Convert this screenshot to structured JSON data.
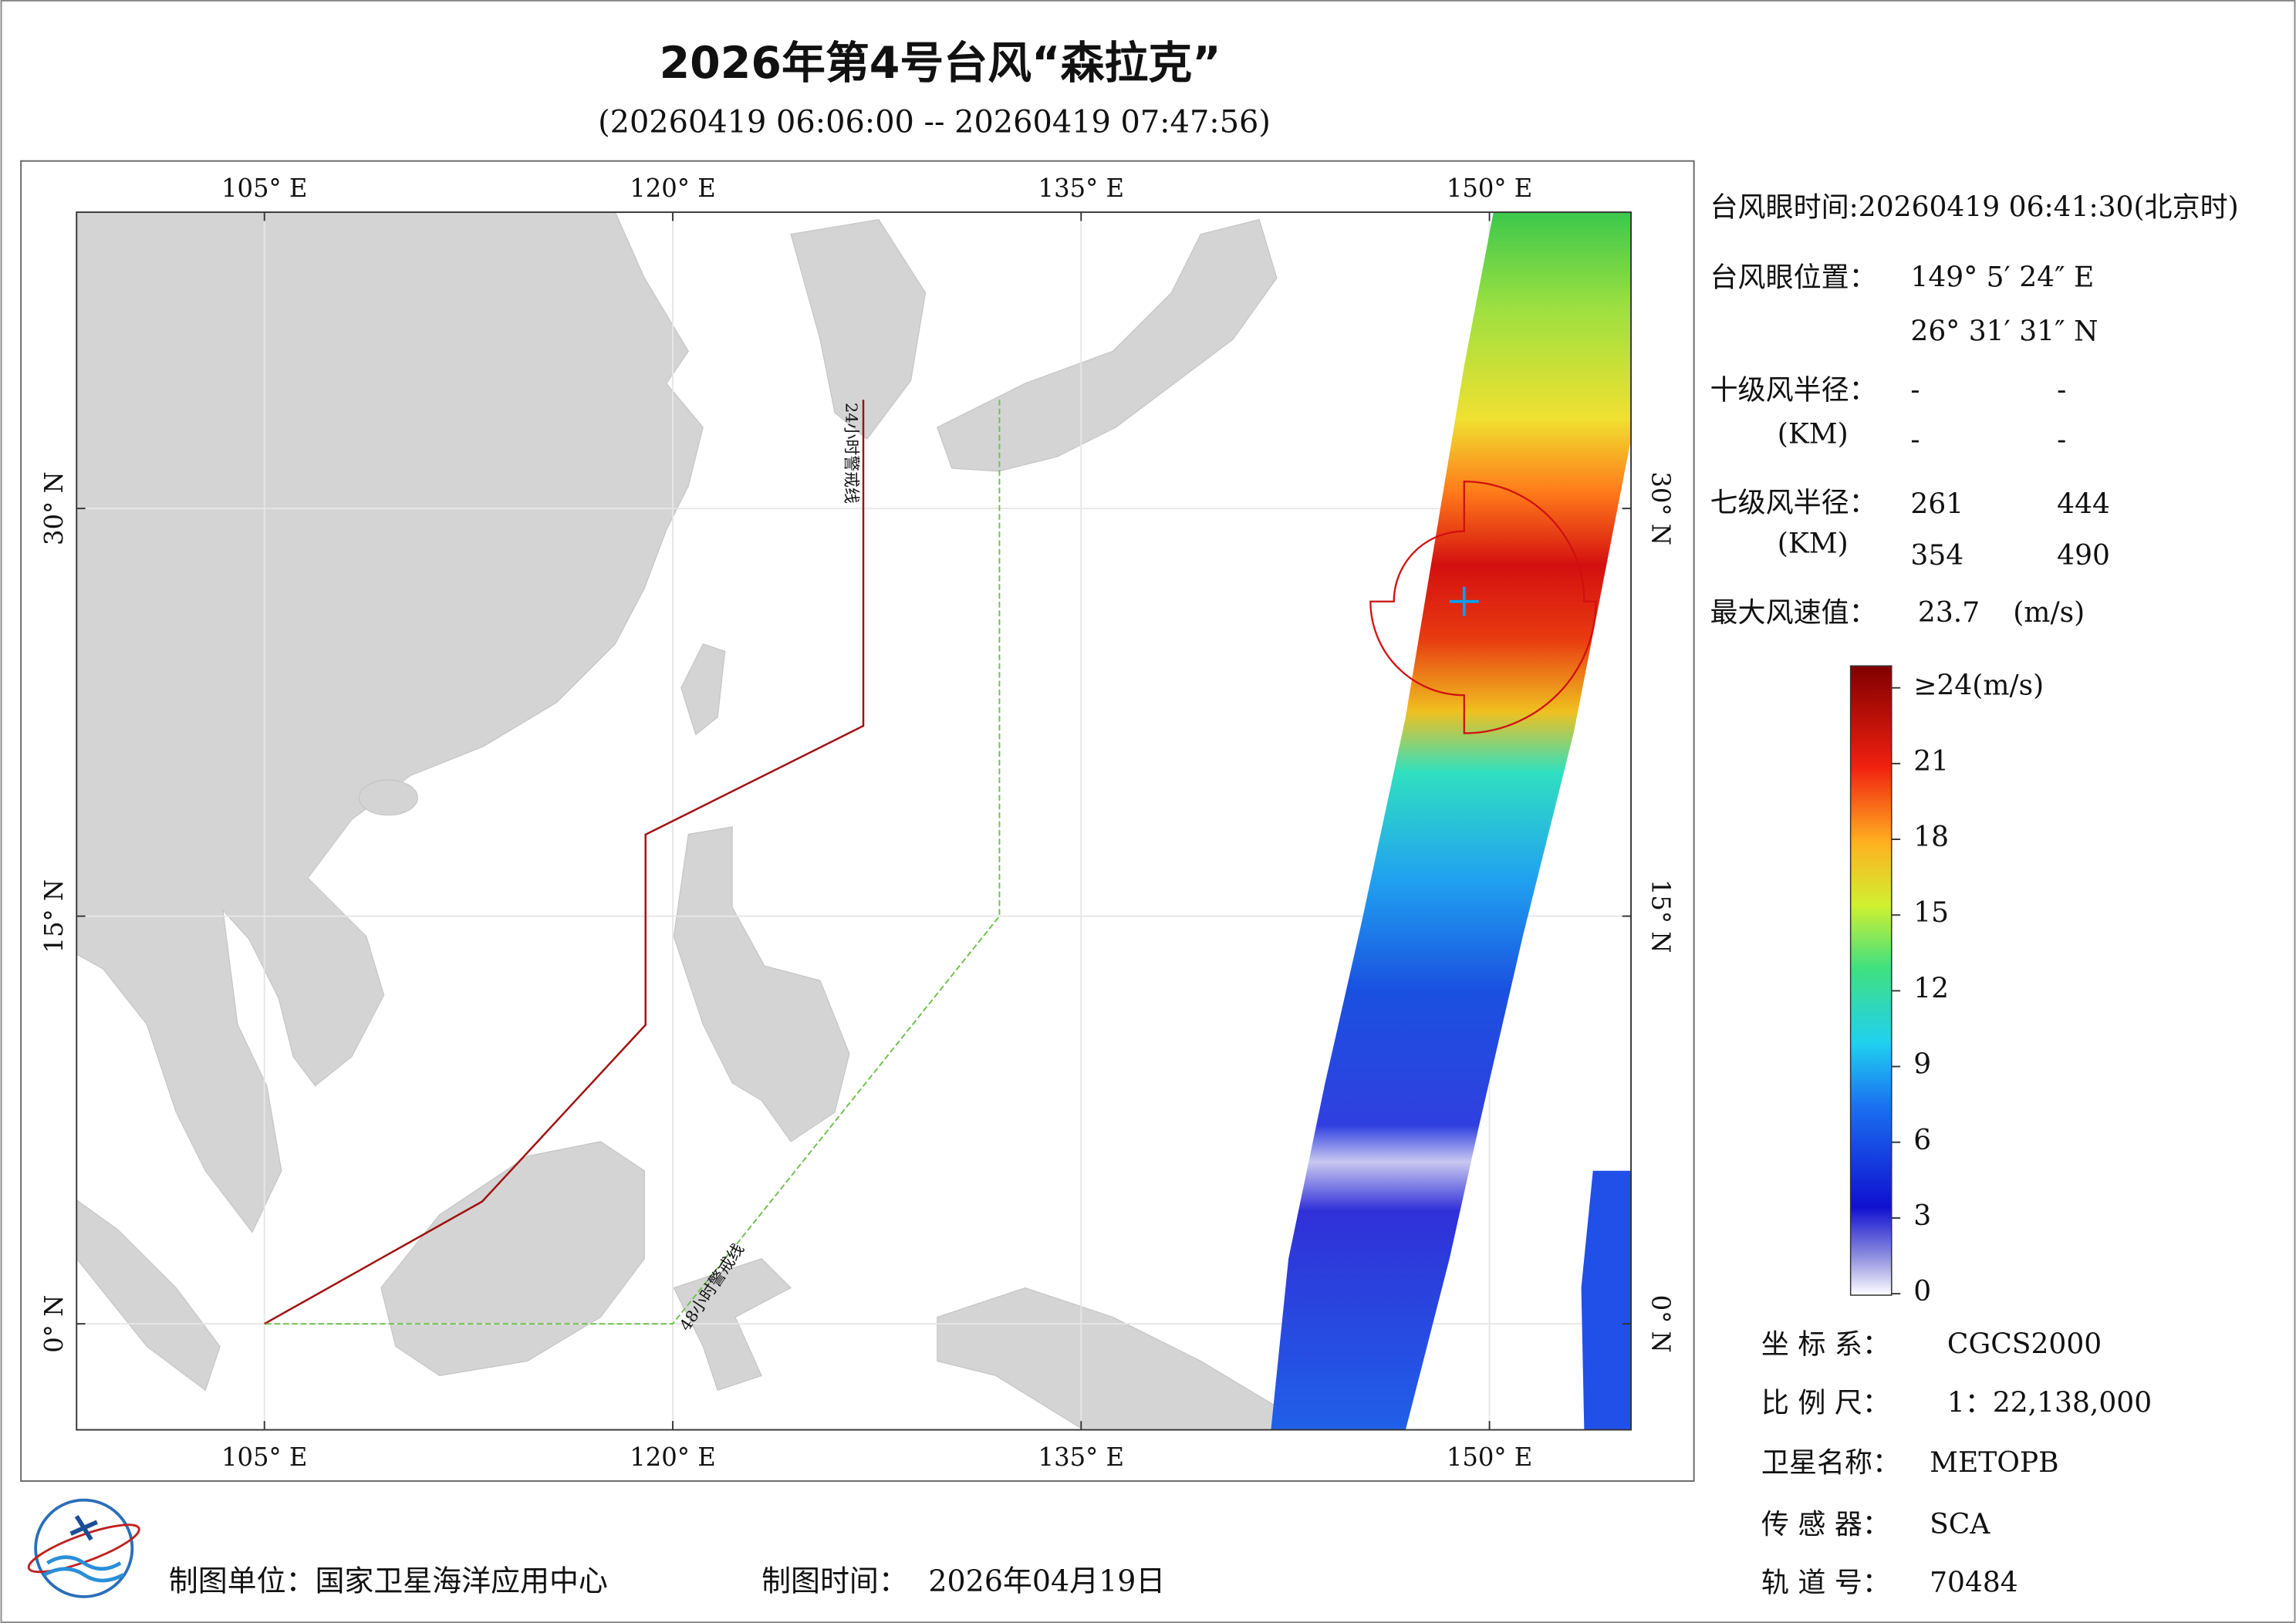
{
  "map": {
    "title": "2026年第4号台风“森拉克”",
    "subtitle": "(20260419 06:06:00 -- 20260419 07:47:56)",
    "xlim": [
      98.1,
      155.2
    ],
    "ylim": [
      -3.9,
      40.9
    ],
    "xticks": [
      {
        "value": 105,
        "label": "105° E"
      },
      {
        "value": 120,
        "label": "120° E"
      },
      {
        "value": 135,
        "label": "135° E"
      },
      {
        "value": 150,
        "label": "150° E"
      }
    ],
    "yticks": [
      {
        "value": 0,
        "label": "0° N"
      },
      {
        "value": 15,
        "label": "15° N"
      },
      {
        "value": 30,
        "label": "30° N"
      }
    ],
    "grid": true,
    "warning_lines": [
      {
        "name": "24小时警戒线",
        "color": "#a01010",
        "lon": [
          127,
          127,
          119,
          119,
          113,
          105
        ],
        "lat": [
          34,
          22,
          18,
          11,
          4.5,
          0
        ]
      },
      {
        "name": "48小时警戒线",
        "color": "#6cc04a",
        "lon": [
          132,
          132,
          120,
          105
        ],
        "lat": [
          34,
          15,
          0,
          0
        ]
      }
    ]
  },
  "info": {
    "eye_time": "台风眼时间:20260419 06:41:30(北京时)",
    "eye_pos_label": "台风眼位置：",
    "eye_lon": "149° 5′ 24″ E",
    "eye_lat": "26° 31′ 31″ N",
    "r10_label": "十级风半径：",
    "r10_unit": "(KM)",
    "r10": [
      "-",
      "-",
      "-",
      "-"
    ],
    "r7_label": "七级风半径：",
    "r7_unit": "(KM)",
    "r7": [
      261,
      444,
      354,
      490
    ],
    "vmax_label": "最大风速值：",
    "vmax": 23.7,
    "vmax_unit": "(m/s)"
  },
  "colorbar": {
    "clim": [
      0,
      24
    ],
    "ticks": [
      {
        "value": 24,
        "label": "≥24(m/s)"
      },
      21,
      18,
      15,
      12,
      9,
      6,
      3,
      0
    ]
  },
  "meta": {
    "crs_label": "坐 标 系：",
    "crs": "CGCS2000",
    "scale_label": "比 例 尺：",
    "scale": "1：22,138,000",
    "sat_label": "卫星名称：",
    "sat": "METOPB",
    "sensor_label": "传 感 器：",
    "sensor": "SCA",
    "orbit_label": "轨 道 号：",
    "orbit": 70484
  },
  "footer": {
    "unit": "制图单位：国家卫星海洋应用中心",
    "time_label": "制图时间：",
    "time": "2026年04月19日"
  }
}
